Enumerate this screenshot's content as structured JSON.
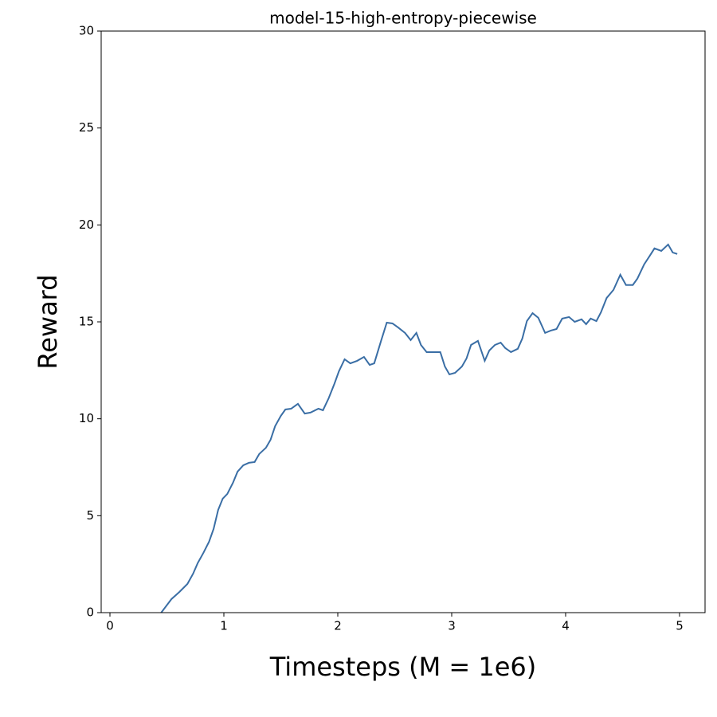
{
  "chart_data": {
    "type": "line",
    "title": "model-15-high-entropy-piecewise",
    "x_label": "Timesteps (M = 1e6)",
    "y_label": "Reward",
    "xlim": [
      -0.077,
      5.224
    ],
    "ylim": [
      0,
      30
    ],
    "xticks": [
      0,
      1,
      2,
      3,
      4,
      5
    ],
    "yticks": [
      0,
      5,
      10,
      15,
      20,
      25,
      30
    ],
    "x": [
      0.45,
      0.54,
      0.61,
      0.68,
      0.73,
      0.77,
      0.82,
      0.87,
      0.91,
      0.95,
      0.99,
      1.03,
      1.08,
      1.12,
      1.17,
      1.22,
      1.27,
      1.31,
      1.37,
      1.41,
      1.45,
      1.5,
      1.54,
      1.59,
      1.65,
      1.71,
      1.76,
      1.83,
      1.87,
      1.92,
      1.97,
      2.01,
      2.06,
      2.11,
      2.17,
      2.23,
      2.28,
      2.32,
      2.38,
      2.43,
      2.48,
      2.53,
      2.59,
      2.64,
      2.69,
      2.73,
      2.78,
      2.84,
      2.9,
      2.94,
      2.98,
      3.03,
      3.09,
      3.13,
      3.17,
      3.23,
      3.29,
      3.33,
      3.38,
      3.43,
      3.47,
      3.52,
      3.58,
      3.62,
      3.66,
      3.71,
      3.76,
      3.82,
      3.87,
      3.92,
      3.97,
      4.03,
      4.08,
      4.14,
      4.18,
      4.22,
      4.27,
      4.31,
      4.36,
      4.42,
      4.48,
      4.53,
      4.59,
      4.63,
      4.69,
      4.74,
      4.78,
      4.84,
      4.9,
      4.94,
      4.98
    ],
    "series": [
      {
        "name": "reward",
        "color": "#3a6ea5",
        "values": [
          0,
          0.7,
          1.07,
          1.48,
          2.01,
          2.55,
          3.08,
          3.66,
          4.32,
          5.3,
          5.88,
          6.12,
          6.7,
          7.27,
          7.6,
          7.73,
          7.77,
          8.18,
          8.51,
          8.92,
          9.62,
          10.15,
          10.48,
          10.52,
          10.77,
          10.27,
          10.32,
          10.52,
          10.44,
          11.06,
          11.8,
          12.45,
          13.07,
          12.86,
          12.99,
          13.19,
          12.78,
          12.86,
          14.02,
          14.96,
          14.92,
          14.71,
          14.43,
          14.06,
          14.43,
          13.81,
          13.44,
          13.44,
          13.44,
          12.7,
          12.29,
          12.37,
          12.7,
          13.11,
          13.81,
          14.02,
          12.99,
          13.52,
          13.81,
          13.93,
          13.65,
          13.44,
          13.61,
          14.14,
          15.04,
          15.45,
          15.21,
          14.43,
          14.55,
          14.63,
          15.17,
          15.25,
          15,
          15.13,
          14.88,
          15.17,
          15.04,
          15.49,
          16.23,
          16.65,
          17.43,
          16.9,
          16.9,
          17.23,
          17.97,
          18.42,
          18.79,
          18.66,
          18.99,
          18.58,
          18.5
        ]
      }
    ]
  }
}
